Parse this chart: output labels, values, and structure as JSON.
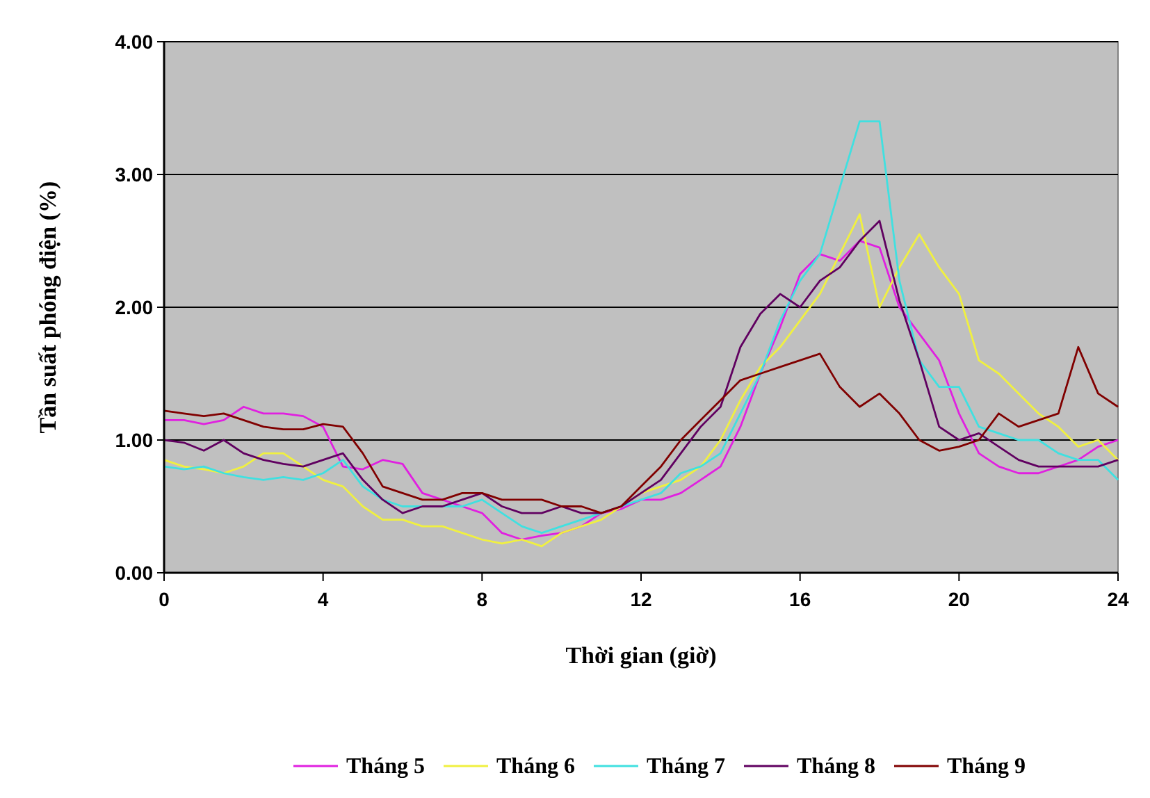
{
  "chart_data": {
    "type": "line",
    "xlabel": "Thời gian (giờ)",
    "ylabel": "Tần suất phóng điện (%)",
    "x": [
      0,
      0.5,
      1,
      1.5,
      2,
      2.5,
      3,
      3.5,
      4,
      4.5,
      5,
      5.5,
      6,
      6.5,
      7,
      7.5,
      8,
      8.5,
      9,
      9.5,
      10,
      10.5,
      11,
      11.5,
      12,
      12.5,
      13,
      13.5,
      14,
      14.5,
      15,
      15.5,
      16,
      16.5,
      17,
      17.5,
      18,
      18.5,
      19,
      19.5,
      20,
      20.5,
      21,
      21.5,
      22,
      22.5,
      23,
      23.5,
      24
    ],
    "xlim": [
      0,
      24
    ],
    "xticks": [
      0,
      4,
      8,
      12,
      16,
      20,
      24
    ],
    "ylim": [
      0,
      4
    ],
    "yticks": [
      {
        "value": 0,
        "label": "0.00"
      },
      {
        "value": 1,
        "label": "1.00"
      },
      {
        "value": 2,
        "label": "2.00"
      },
      {
        "value": 3,
        "label": "3.00"
      },
      {
        "value": 4,
        "label": "4.00"
      }
    ],
    "grid": "y",
    "legend": "bottom",
    "marker": "none",
    "line_style": "solid",
    "series": [
      {
        "name": "Tháng 5",
        "color": "#e020e0",
        "values": [
          1.15,
          1.15,
          1.12,
          1.15,
          1.25,
          1.2,
          1.2,
          1.18,
          1.1,
          0.8,
          0.78,
          0.85,
          0.82,
          0.6,
          0.55,
          0.5,
          0.45,
          0.3,
          0.25,
          0.28,
          0.3,
          0.35,
          0.45,
          0.48,
          0.55,
          0.55,
          0.6,
          0.7,
          0.8,
          1.1,
          1.5,
          1.85,
          2.25,
          2.4,
          2.35,
          2.5,
          2.45,
          2.0,
          1.8,
          1.6,
          1.2,
          0.9,
          0.8,
          0.75,
          0.75,
          0.8,
          0.85,
          0.95,
          1.0
        ]
      },
      {
        "name": "Tháng 6",
        "color": "#f0f040",
        "values": [
          0.85,
          0.8,
          0.78,
          0.75,
          0.8,
          0.9,
          0.9,
          0.8,
          0.7,
          0.65,
          0.5,
          0.4,
          0.4,
          0.35,
          0.35,
          0.3,
          0.25,
          0.22,
          0.25,
          0.2,
          0.3,
          0.35,
          0.4,
          0.5,
          0.6,
          0.65,
          0.7,
          0.8,
          1.0,
          1.3,
          1.55,
          1.7,
          1.9,
          2.1,
          2.4,
          2.7,
          2.0,
          2.3,
          2.55,
          2.3,
          2.1,
          1.6,
          1.5,
          1.35,
          1.2,
          1.1,
          0.95,
          1.0,
          0.85
        ]
      },
      {
        "name": "Tháng 7",
        "color": "#40e0e0",
        "values": [
          0.8,
          0.78,
          0.8,
          0.75,
          0.72,
          0.7,
          0.72,
          0.7,
          0.75,
          0.85,
          0.65,
          0.55,
          0.5,
          0.5,
          0.5,
          0.5,
          0.55,
          0.45,
          0.35,
          0.3,
          0.35,
          0.4,
          0.45,
          0.5,
          0.55,
          0.6,
          0.75,
          0.8,
          0.9,
          1.2,
          1.5,
          1.9,
          2.2,
          2.4,
          2.9,
          3.4,
          3.4,
          2.2,
          1.6,
          1.4,
          1.4,
          1.1,
          1.05,
          1.0,
          1.0,
          0.9,
          0.85,
          0.85,
          0.7
        ]
      },
      {
        "name": "Tháng 8",
        "color": "#600060",
        "values": [
          1.0,
          0.98,
          0.92,
          1.0,
          0.9,
          0.85,
          0.82,
          0.8,
          0.85,
          0.9,
          0.7,
          0.55,
          0.45,
          0.5,
          0.5,
          0.55,
          0.6,
          0.5,
          0.45,
          0.45,
          0.5,
          0.45,
          0.45,
          0.5,
          0.6,
          0.7,
          0.9,
          1.1,
          1.25,
          1.7,
          1.95,
          2.1,
          2.0,
          2.2,
          2.3,
          2.5,
          2.65,
          2.05,
          1.6,
          1.1,
          1.0,
          1.05,
          0.95,
          0.85,
          0.8,
          0.8,
          0.8,
          0.8,
          0.85
        ]
      },
      {
        "name": "Tháng 9",
        "color": "#800000",
        "values": [
          1.22,
          1.2,
          1.18,
          1.2,
          1.15,
          1.1,
          1.08,
          1.08,
          1.12,
          1.1,
          0.9,
          0.65,
          0.6,
          0.55,
          0.55,
          0.6,
          0.6,
          0.55,
          0.55,
          0.55,
          0.5,
          0.5,
          0.45,
          0.5,
          0.65,
          0.8,
          1.0,
          1.15,
          1.3,
          1.45,
          1.5,
          1.55,
          1.6,
          1.65,
          1.4,
          1.25,
          1.35,
          1.2,
          1.0,
          0.92,
          0.95,
          1.0,
          1.2,
          1.1,
          1.15,
          1.2,
          1.7,
          1.35,
          1.25
        ]
      }
    ]
  }
}
